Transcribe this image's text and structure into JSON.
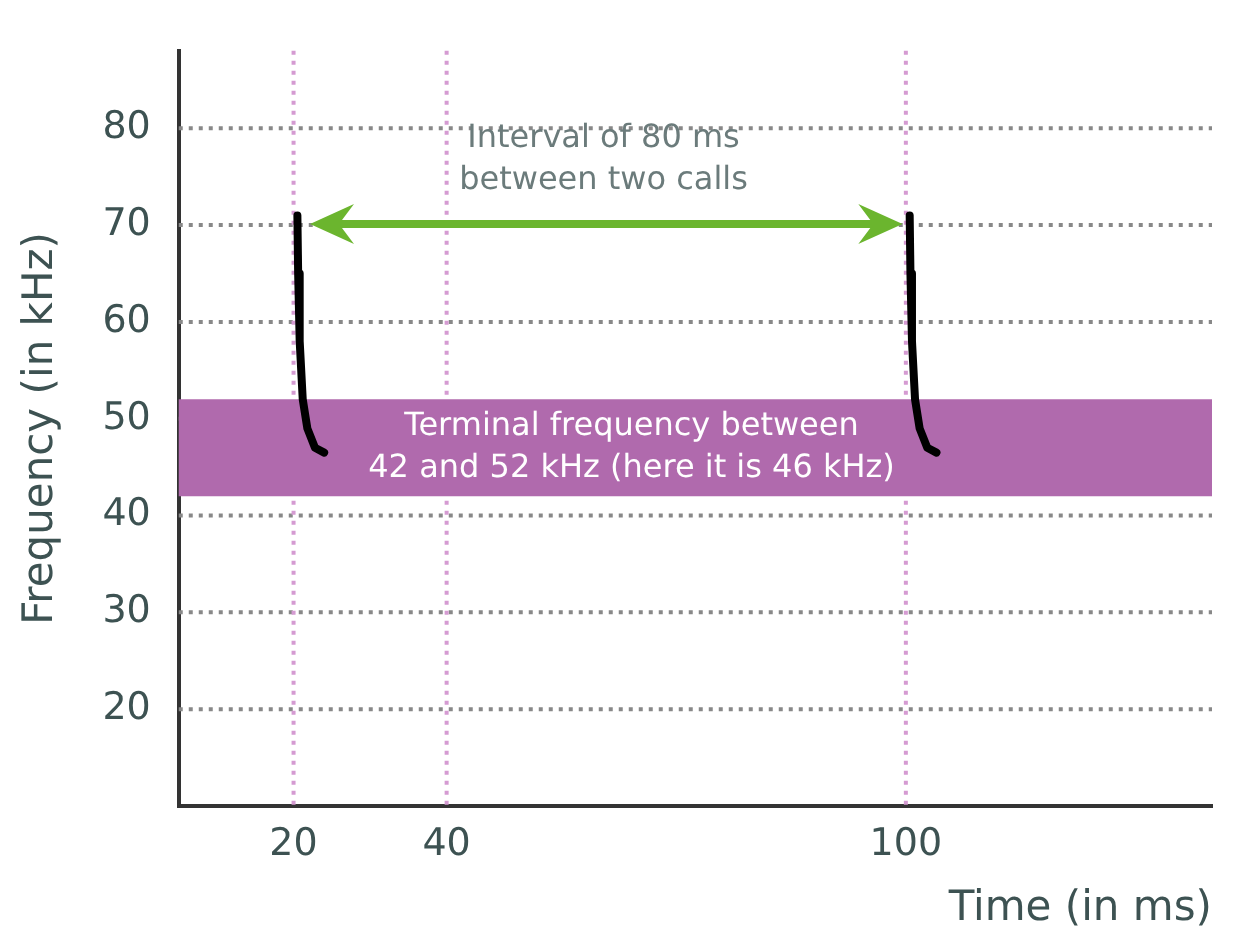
{
  "chart_data": {
    "type": "line",
    "xlabel": "Time (in ms)",
    "ylabel": "Frequency (in kHz)",
    "xlim": [
      5,
      140
    ],
    "xticks": [
      20,
      40,
      100
    ],
    "ylim": [
      10,
      88
    ],
    "yticks": [
      20,
      30,
      40,
      50,
      60,
      70,
      80
    ],
    "grid": true,
    "marker": "none",
    "line_style": "solid",
    "series": [
      {
        "color": "#000000",
        "x": [
          20.5,
          20.6,
          20.8,
          21.2,
          21.8,
          22.8,
          24
        ],
        "values": [
          71,
          65,
          58,
          52,
          49,
          47,
          46.5
        ]
      },
      {
        "color": "#000000",
        "x": [
          100.5,
          100.6,
          100.8,
          101.2,
          101.8,
          102.8,
          104
        ],
        "values": [
          71,
          65,
          58,
          52,
          49,
          47,
          46.5
        ]
      }
    ],
    "bands": [
      {
        "axis": "y",
        "from": 42,
        "to": 52,
        "color": "#b06aad"
      }
    ],
    "annotations": [
      "Interval of 80 ms\nbetween two calls",
      "Terminal frequency between\n42 and 52 kHz (here it is 46 kHz)"
    ]
  }
}
